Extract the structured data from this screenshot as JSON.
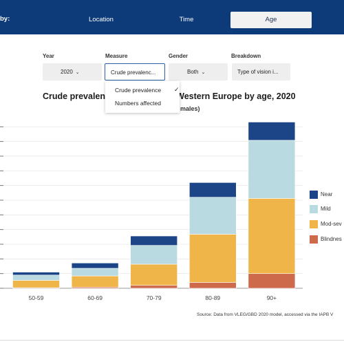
{
  "nav": {
    "by_label": "by:",
    "tabs": [
      "Location",
      "Time",
      "Age"
    ],
    "active_tab": "Age"
  },
  "filters": {
    "year": {
      "label": "Year",
      "value": "2020"
    },
    "measure": {
      "label": "Measure",
      "value": "Crude prevalenc..."
    },
    "gender": {
      "label": "Gender",
      "value": "Both"
    },
    "breakdown": {
      "label": "Breakdown",
      "value": "Type of vision i..."
    }
  },
  "measure_menu": {
    "options": [
      "Crude prevalence",
      "Numbers affected"
    ],
    "selected": "Crude prevalence"
  },
  "title_visible": "Crude prevalen",
  "title_visible_right": "n Western Europe by age, 2020",
  "subtitle_visible": "males)",
  "colors": {
    "near": "#1c4587",
    "mild": "#b8dae0",
    "mod_severe": "#f0b548",
    "blindness": "#cd6a4b",
    "nav_bg": "#0d3b7a"
  },
  "chart_data": {
    "type": "bar",
    "stacked": true,
    "categories": [
      "50-59",
      "60-69",
      "70-79",
      "80-89",
      "90+"
    ],
    "series": [
      {
        "name": "Blindness",
        "legend_label": "Blindnes",
        "values": [
          0.2,
          0.4,
          1.0,
          2.0,
          5.0
        ]
      },
      {
        "name": "Mod-sev",
        "legend_label": "Mod-sev",
        "values": [
          2.5,
          3.8,
          7.2,
          16.4,
          25.6
        ]
      },
      {
        "name": "Mild",
        "legend_label": "Mild",
        "values": [
          1.8,
          2.6,
          6.4,
          12.6,
          19.8
        ]
      },
      {
        "name": "Near",
        "legend_label": "Near",
        "values": [
          1.0,
          1.8,
          3.2,
          5.0,
          6.2
        ]
      }
    ],
    "ylim": [
      0,
      56
    ],
    "y_gridlines": [
      0,
      5,
      10,
      15,
      20,
      25,
      30,
      35,
      40,
      45,
      50,
      55
    ],
    "grid": true,
    "legend_position": "right"
  },
  "source_text": "Source: Data from VLEG/GBD 2020 model, accessed via the IAPB V"
}
